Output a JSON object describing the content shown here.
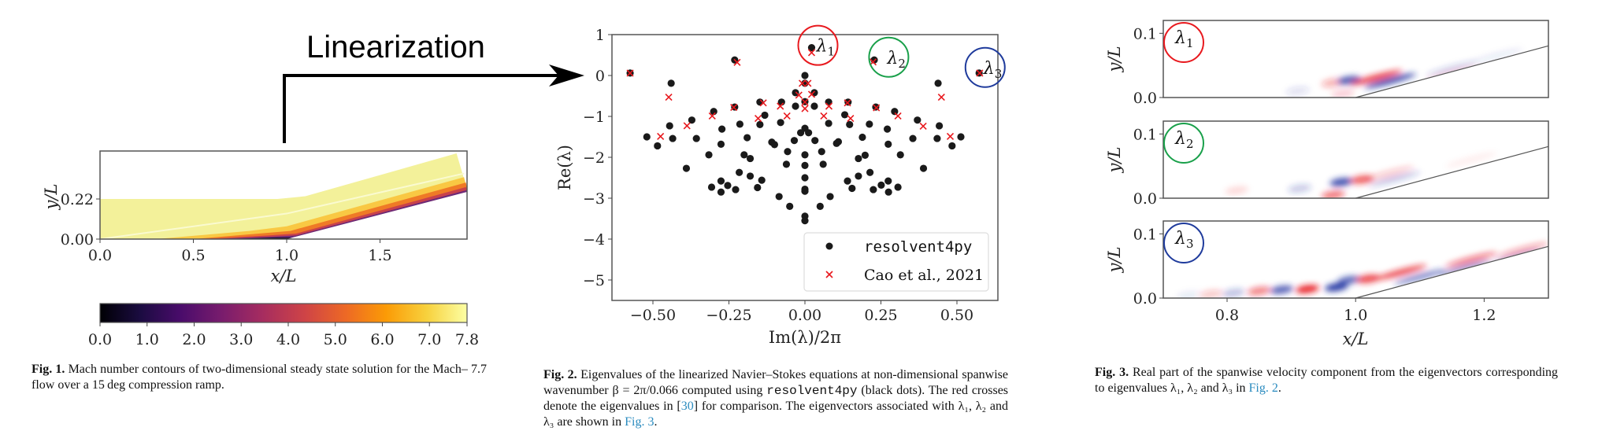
{
  "arrow_label": "Linearization",
  "colors": {
    "dots": "#1a1a1a",
    "crosses": "#e8191e",
    "lambda1": "#e8191e",
    "lambda2": "#19a04a",
    "lambda3": "#1f3b9c",
    "link": "#2a8bbf",
    "positive": "#e8191e",
    "negative": "#1f2fa0"
  },
  "captions": {
    "fig1": {
      "label": "Fig. 1.",
      "text": "Mach number contours of two-dimensional steady state solution for the Mach– 7.7 flow over a 15 deg compression ramp."
    },
    "fig2": {
      "label": "Fig. 2.",
      "text1": "Eigenvalues of the linearized Navier–Stokes equations at non-dimensional spanwise wavenumber β = 2π/0.066 computed using",
      "code": "resolvent4py",
      "text2": "(black dots). The red crosses denote the eigenvalues in [",
      "ref": "30",
      "text3": "] for comparison. The eigenvectors associated with λ₁, λ₂ and λ₃ are shown in",
      "figref": "Fig. 3",
      "end": "."
    },
    "fig3": {
      "label": "Fig. 3.",
      "text": "Real part of the spanwise velocity component from the eigenvectors corresponding to eigenvalues λ₁, λ₂ and λ₃ in",
      "figref": "Fig. 2",
      "end": "."
    }
  },
  "chart_data": [
    {
      "type": "heatmap",
      "subtype": "contour",
      "xlabel": "x/L",
      "ylabel": "y/L",
      "xticks": [
        "0.0",
        "0.5",
        "1.0",
        "1.5"
      ],
      "yticks": [
        "0.00",
        "0.22"
      ],
      "xlim": [
        0,
        1.97
      ],
      "ylim": [
        0,
        0.48
      ],
      "colorbar": {
        "ticks": [
          "0.0",
          "1.0",
          "2.0",
          "3.0",
          "4.0",
          "5.0",
          "6.0",
          "7.0",
          "7.8"
        ],
        "range": [
          0,
          7.8
        ],
        "colormap": "inferno",
        "orientation": "horizontal"
      },
      "ramp_corner_x": 1.0,
      "ramp_angle_deg": 15
    },
    {
      "type": "scatter",
      "xlabel": "Im(λ)/2π",
      "ylabel": "Re(λ)",
      "xlim": [
        -0.635,
        0.635
      ],
      "ylim": [
        -5.5,
        1
      ],
      "xticks": [
        "−0.50",
        "−0.25",
        "0.00",
        "0.25",
        "0.50"
      ],
      "yticks": [
        "1",
        "0",
        "−1",
        "−2",
        "−3",
        "−4",
        "−5"
      ],
      "legend_position": "bottom-right",
      "series": [
        {
          "name": "resolvent4py",
          "marker": "dot",
          "points": [
            [
              -0.575,
              0.06
            ],
            [
              -0.44,
              -0.19
            ],
            [
              -0.52,
              -1.5
            ],
            [
              -0.485,
              -1.72
            ],
            [
              -0.445,
              -1.23
            ],
            [
              -0.435,
              -1.54
            ],
            [
              -0.39,
              -2.27
            ],
            [
              -0.372,
              -1.09
            ],
            [
              -0.357,
              -1.54
            ],
            [
              -0.316,
              -1.94
            ],
            [
              -0.3,
              -0.88
            ],
            [
              -0.273,
              -1.31
            ],
            [
              -0.276,
              -1.68
            ],
            [
              -0.307,
              -2.73
            ],
            [
              -0.276,
              -2.58
            ],
            [
              -0.276,
              -2.85
            ],
            [
              -0.254,
              -2.69
            ],
            [
              -0.228,
              -2.79
            ],
            [
              -0.231,
              0.38
            ],
            [
              -0.231,
              -0.77
            ],
            [
              -0.214,
              -1.19
            ],
            [
              -0.216,
              -2.37
            ],
            [
              -0.2,
              -1.94
            ],
            [
              -0.19,
              -1.52
            ],
            [
              -0.18,
              -2.03
            ],
            [
              -0.18,
              -2.46
            ],
            [
              -0.156,
              -2.74
            ],
            [
              -0.142,
              -2.56
            ],
            [
              -0.148,
              -0.65
            ],
            [
              -0.148,
              -1.2
            ],
            [
              -0.132,
              -0.97
            ],
            [
              -0.109,
              -1.63
            ],
            [
              -0.1,
              -1.69
            ],
            [
              -0.077,
              -0.65
            ],
            [
              -0.08,
              -1.15
            ],
            [
              -0.057,
              -1.86
            ],
            [
              -0.061,
              -2.17
            ],
            [
              -0.085,
              -2.96
            ],
            [
              -0.05,
              -3.2
            ],
            [
              -0.035,
              -1.59
            ],
            [
              -0.031,
              -0.42
            ],
            [
              -0.031,
              -0.75
            ],
            [
              -0.014,
              -1.4
            ],
            [
              0,
              0
            ],
            [
              0,
              -0.19
            ],
            [
              0,
              -0.64
            ],
            [
              0,
              -1.29
            ],
            [
              0.012,
              -1.4
            ],
            [
              0,
              -1.94
            ],
            [
              0,
              -2.2
            ],
            [
              0,
              -2.5
            ],
            [
              0,
              -2.78
            ],
            [
              0,
              -2.83
            ],
            [
              0,
              -3.44
            ],
            [
              0,
              -3.55
            ],
            [
              0.022,
              0.68
            ],
            [
              0.031,
              -0.42
            ],
            [
              0.031,
              -0.75
            ],
            [
              0.033,
              -1.59
            ],
            [
              0.055,
              -1.86
            ],
            [
              0.06,
              -2.17
            ],
            [
              0.05,
              -3.2
            ],
            [
              0.078,
              -0.65
            ],
            [
              0.078,
              -1.17
            ],
            [
              0.083,
              -2.96
            ],
            [
              0.104,
              -1.66
            ],
            [
              0.11,
              -1.62
            ],
            [
              0.142,
              -0.65
            ],
            [
              0.131,
              -0.96
            ],
            [
              0.147,
              -1.2
            ],
            [
              0.14,
              -2.58
            ],
            [
              0.155,
              -2.76
            ],
            [
              0.176,
              -2.03
            ],
            [
              0.198,
              -1.95
            ],
            [
              0.189,
              -1.51
            ],
            [
              0.176,
              -2.46
            ],
            [
              0.214,
              -2.37
            ],
            [
              0.212,
              -1.19
            ],
            [
              0.228,
              0.38
            ],
            [
              0.233,
              -0.77
            ],
            [
              0.225,
              -2.79
            ],
            [
              0.251,
              -2.68
            ],
            [
              0.274,
              -2.58
            ],
            [
              0.275,
              -2.85
            ],
            [
              0.271,
              -1.31
            ],
            [
              0.274,
              -1.68
            ],
            [
              0.295,
              -0.88
            ],
            [
              0.306,
              -2.73
            ],
            [
              0.314,
              -1.94
            ],
            [
              0.37,
              -1.09
            ],
            [
              0.355,
              -1.54
            ],
            [
              0.39,
              -2.27
            ],
            [
              0.438,
              -0.19
            ],
            [
              0.442,
              -1.23
            ],
            [
              0.435,
              -1.54
            ],
            [
              0.484,
              -1.72
            ],
            [
              0.513,
              -1.5
            ],
            [
              0.573,
              0.06
            ]
          ]
        },
        {
          "name": "Cao et al., 2021",
          "marker": "x",
          "points": [
            [
              -0.575,
              0.06
            ],
            [
              -0.448,
              -0.53
            ],
            [
              -0.475,
              -1.49
            ],
            [
              -0.388,
              -1.23
            ],
            [
              -0.305,
              -0.99
            ],
            [
              -0.234,
              -0.78
            ],
            [
              -0.223,
              0.32
            ],
            [
              -0.154,
              -1.05
            ],
            [
              -0.137,
              -0.67
            ],
            [
              -0.081,
              -0.75
            ],
            [
              -0.059,
              -0.99
            ],
            [
              -0.009,
              -0.19
            ],
            [
              0.01,
              -0.19
            ],
            [
              -0.02,
              -0.48
            ],
            [
              0.022,
              -0.46
            ],
            [
              0,
              -0.65
            ],
            [
              0,
              -0.81
            ],
            [
              0.022,
              0.56
            ],
            [
              0.062,
              -0.99
            ],
            [
              0.079,
              -0.75
            ],
            [
              0.15,
              -1.05
            ],
            [
              0.14,
              -0.67
            ],
            [
              0.235,
              -0.79
            ],
            [
              0.224,
              0.33
            ],
            [
              0.306,
              -0.99
            ],
            [
              0.389,
              -1.24
            ],
            [
              0.449,
              -0.53
            ],
            [
              0.478,
              -1.49
            ],
            [
              0.575,
              0.06
            ]
          ]
        }
      ],
      "annotations": [
        {
          "label": "λ",
          "sub": "1",
          "x": 0.022,
          "y": 0.66,
          "color": "#e8191e"
        },
        {
          "label": "λ",
          "sub": "2",
          "x": 0.255,
          "y": 0.37,
          "color": "#19a04a"
        },
        {
          "label": "λ",
          "sub": "3",
          "x": 0.572,
          "y": 0.12,
          "color": "#1f3b9c"
        }
      ]
    },
    {
      "type": "heatmap",
      "subtype": "contour-stack",
      "xlabel": "x/L",
      "ylabel": "y/L",
      "xlim": [
        0.7,
        1.3
      ],
      "ylim": [
        0,
        0.12
      ],
      "xticks": [
        "0.8",
        "1.0",
        "1.2"
      ],
      "yticks": [
        "0.0",
        "0.1"
      ],
      "colormap": "red-white-blue",
      "panels": [
        {
          "label": "λ",
          "sub": "1",
          "color": "#e8191e",
          "blobs": [
            [
              0.91,
              0.01,
              -1,
              0.15
            ],
            [
              0.965,
              0.023,
              1,
              0.35
            ],
            [
              0.99,
              0.027,
              -1,
              0.8
            ],
            [
              1.032,
              0.031,
              1,
              0.9
            ],
            [
              1.054,
              0.026,
              -1,
              0.95
            ],
            [
              1.15,
              0.045,
              -1,
              0.25
            ],
            [
              1.15,
              0.036,
              1,
              0.2
            ],
            [
              1.22,
              0.065,
              -1,
              0.1
            ],
            [
              0.98,
              0.006,
              1,
              0.2
            ]
          ]
        },
        {
          "label": "λ",
          "sub": "2",
          "color": "#19a04a",
          "blobs": [
            [
              0.815,
              0.012,
              1,
              0.15
            ],
            [
              0.913,
              0.015,
              -1,
              0.25
            ],
            [
              0.965,
              0.005,
              1,
              0.6
            ],
            [
              0.978,
              0.025,
              -1,
              0.85
            ],
            [
              1.01,
              0.029,
              1,
              0.7
            ],
            [
              1.06,
              0.03,
              -1,
              0.3
            ],
            [
              1.05,
              0.038,
              1,
              0.25
            ],
            [
              1.18,
              0.06,
              1,
              0.08
            ]
          ]
        },
        {
          "label": "λ",
          "sub": "3",
          "color": "#1f3b9c",
          "blobs": [
            [
              0.74,
              0.004,
              -1,
              0.1
            ],
            [
              0.775,
              0.006,
              1,
              0.25
            ],
            [
              0.81,
              0.008,
              -1,
              0.3
            ],
            [
              0.85,
              0.011,
              1,
              0.55
            ],
            [
              0.885,
              0.013,
              -1,
              0.75
            ],
            [
              0.925,
              0.014,
              1,
              0.95
            ],
            [
              0.97,
              0.017,
              -1,
              0.95
            ],
            [
              0.99,
              0.028,
              -1,
              0.7
            ],
            [
              1.02,
              0.03,
              1,
              0.8
            ],
            [
              1.07,
              0.04,
              1,
              0.85
            ],
            [
              1.1,
              0.033,
              -1,
              0.6
            ],
            [
              1.18,
              0.06,
              1,
              0.6
            ],
            [
              1.17,
              0.047,
              -1,
              0.55
            ],
            [
              1.26,
              0.075,
              1,
              0.4
            ],
            [
              1.25,
              0.064,
              -1,
              0.4
            ]
          ]
        }
      ]
    }
  ]
}
